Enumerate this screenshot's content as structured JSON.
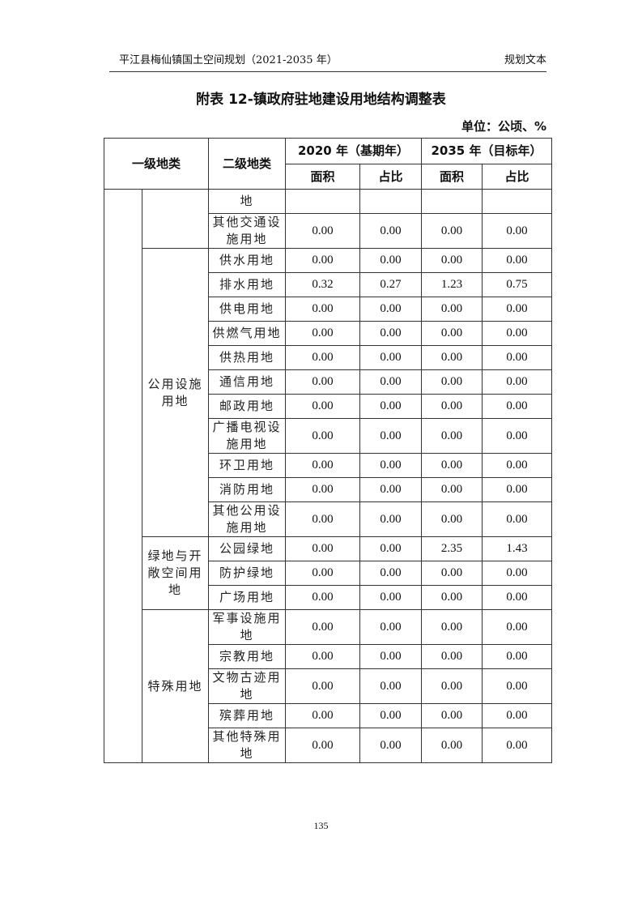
{
  "header": {
    "doc_title": "平江县梅仙镇国土空间规划（2021-2035 年）",
    "section": "规划文本"
  },
  "table_title": "附表 12-镇政府驻地建设用地结构调整表",
  "unit": "单位：公顷、%",
  "columns": {
    "level1": "一级地类",
    "level2": "二级地类",
    "base_year": "2020 年（基期年）",
    "target_year": "2035 年（目标年）",
    "area": "面积",
    "share": "占比"
  },
  "groups": [
    {
      "name": "",
      "rows": [
        {
          "name": "地",
          "v": [
            "",
            "",
            "",
            ""
          ]
        },
        {
          "name": "其他交通设施用地",
          "v": [
            "0.00",
            "0.00",
            "0.00",
            "0.00"
          ]
        }
      ]
    },
    {
      "name": "公用设施用地",
      "rows": [
        {
          "name": "供水用地",
          "v": [
            "0.00",
            "0.00",
            "0.00",
            "0.00"
          ]
        },
        {
          "name": "排水用地",
          "v": [
            "0.32",
            "0.27",
            "1.23",
            "0.75"
          ]
        },
        {
          "name": "供电用地",
          "v": [
            "0.00",
            "0.00",
            "0.00",
            "0.00"
          ]
        },
        {
          "name": "供燃气用地",
          "v": [
            "0.00",
            "0.00",
            "0.00",
            "0.00"
          ]
        },
        {
          "name": "供热用地",
          "v": [
            "0.00",
            "0.00",
            "0.00",
            "0.00"
          ]
        },
        {
          "name": "通信用地",
          "v": [
            "0.00",
            "0.00",
            "0.00",
            "0.00"
          ]
        },
        {
          "name": "邮政用地",
          "v": [
            "0.00",
            "0.00",
            "0.00",
            "0.00"
          ]
        },
        {
          "name": "广播电视设施用地",
          "v": [
            "0.00",
            "0.00",
            "0.00",
            "0.00"
          ]
        },
        {
          "name": "环卫用地",
          "v": [
            "0.00",
            "0.00",
            "0.00",
            "0.00"
          ]
        },
        {
          "name": "消防用地",
          "v": [
            "0.00",
            "0.00",
            "0.00",
            "0.00"
          ]
        },
        {
          "name": "其他公用设施用地",
          "v": [
            "0.00",
            "0.00",
            "0.00",
            "0.00"
          ]
        }
      ]
    },
    {
      "name": "绿地与开敞空间用地",
      "rows": [
        {
          "name": "公园绿地",
          "v": [
            "0.00",
            "0.00",
            "2.35",
            "1.43"
          ]
        },
        {
          "name": "防护绿地",
          "v": [
            "0.00",
            "0.00",
            "0.00",
            "0.00"
          ]
        },
        {
          "name": "广场用地",
          "v": [
            "0.00",
            "0.00",
            "0.00",
            "0.00"
          ]
        }
      ]
    },
    {
      "name": "特殊用地",
      "rows": [
        {
          "name": "军事设施用地",
          "v": [
            "0.00",
            "0.00",
            "0.00",
            "0.00"
          ]
        },
        {
          "name": "宗教用地",
          "v": [
            "0.00",
            "0.00",
            "0.00",
            "0.00"
          ]
        },
        {
          "name": "文物古迹用地",
          "v": [
            "0.00",
            "0.00",
            "0.00",
            "0.00"
          ]
        },
        {
          "name": "殡葬用地",
          "v": [
            "0.00",
            "0.00",
            "0.00",
            "0.00"
          ]
        },
        {
          "name": "其他特殊用地",
          "v": [
            "0.00",
            "0.00",
            "0.00",
            "0.00"
          ]
        }
      ]
    }
  ],
  "page_number": "135"
}
